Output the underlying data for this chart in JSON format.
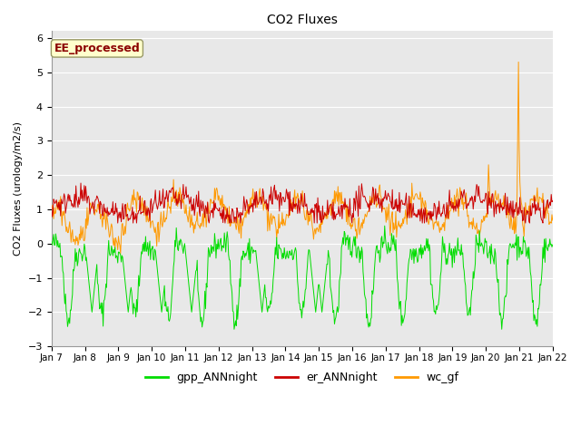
{
  "title": "CO2 Fluxes",
  "ylabel": "CO2 Fluxes (urology/m2/s)",
  "ylim": [
    -3.0,
    6.2
  ],
  "yticks": [
    -3.0,
    -2.0,
    -1.0,
    0.0,
    1.0,
    2.0,
    3.0,
    4.0,
    5.0,
    6.0
  ],
  "x_tick_labels": [
    "Jan 7",
    "Jan 8",
    "Jan 9",
    "Jan 10",
    "Jan 11",
    "Jan 12",
    "Jan 13",
    "Jan 14",
    "Jan 15",
    "Jan 16",
    "Jan 17",
    "Jan 18",
    "Jan 19",
    "Jan 20",
    "Jan 21",
    "Jan 22"
  ],
  "color_gpp": "#00dd00",
  "color_er": "#cc0000",
  "color_wc": "#ff9900",
  "legend_labels": [
    "gpp_ANNnight",
    "er_ANNnight",
    "wc_gf"
  ],
  "annotation_text": "EE_processed",
  "annotation_color": "#8b0000",
  "annotation_bg": "#ffffcc",
  "background_color": "#e8e8e8",
  "n_points": 720,
  "seed": 42
}
